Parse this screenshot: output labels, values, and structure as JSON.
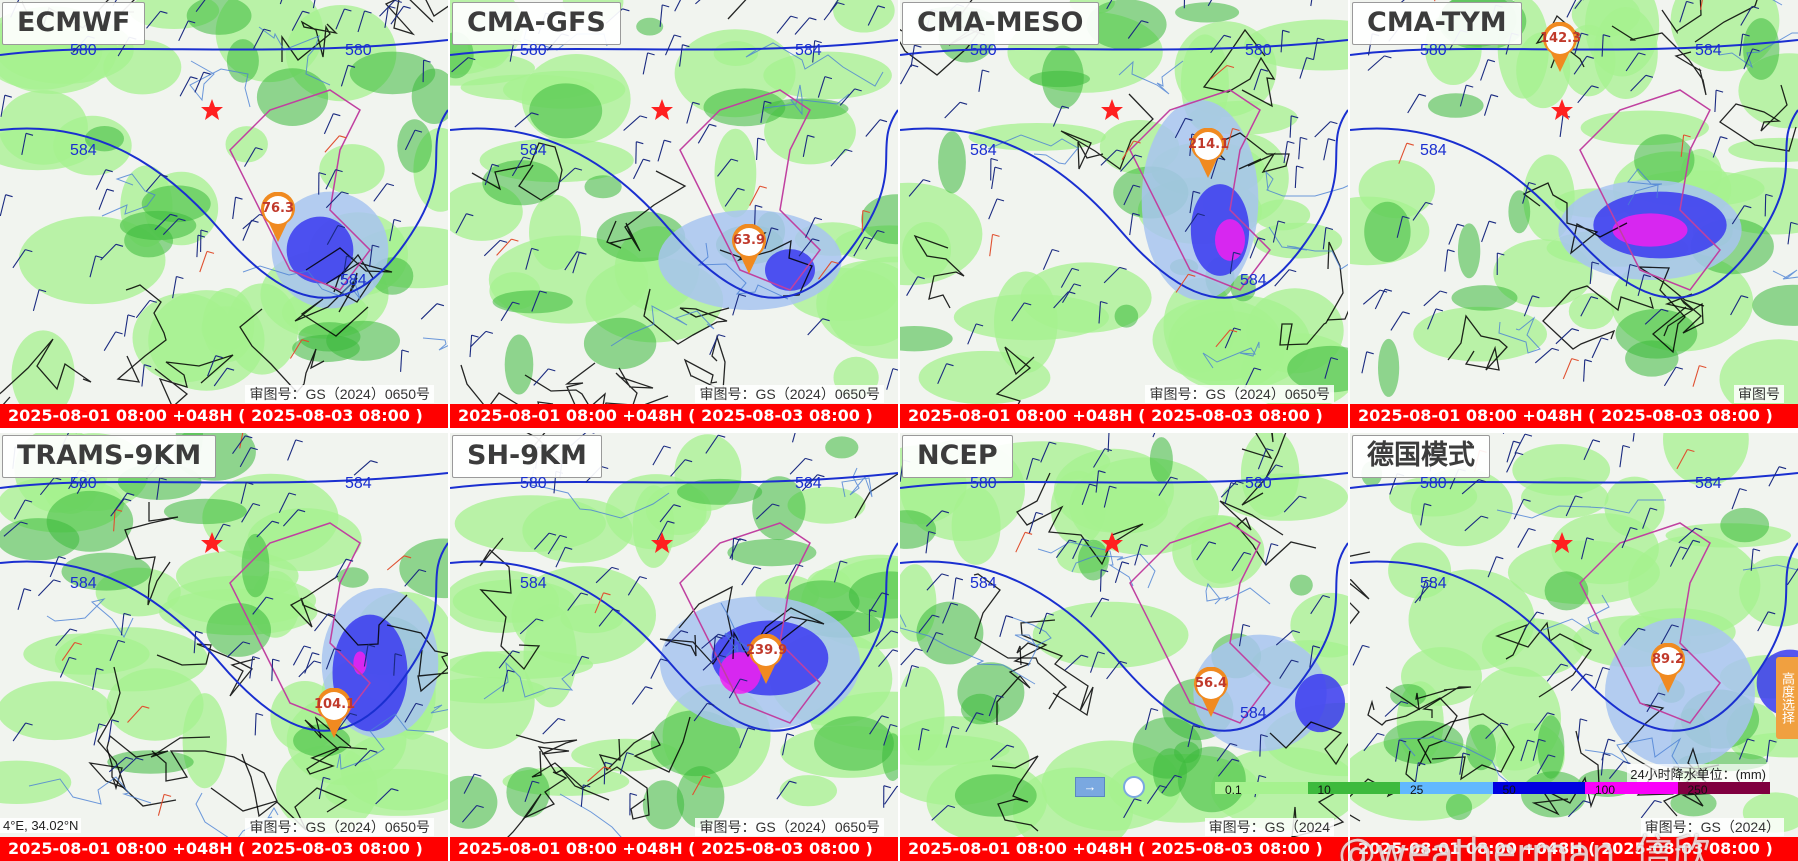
{
  "panels": [
    {
      "title": "ECMWF",
      "max_value": "76.3",
      "footer": "2025-08-01 08:00 +048H ( 2025-08-03 08:00 )",
      "approval": "审图号：GS（2024）0650号",
      "contours": [
        "580",
        "580",
        "584",
        "584"
      ]
    },
    {
      "title": "CMA-GFS",
      "max_value": "63.9",
      "footer": "2025-08-01 08:00 +048H ( 2025-08-03 08:00 )",
      "approval": "审图号：GS（2024）0650号",
      "contours": [
        "580",
        "584",
        "584"
      ]
    },
    {
      "title": "CMA-MESO",
      "max_value": "214.1",
      "footer": "2025-08-01 08:00 +048H ( 2025-08-03 08:00 )",
      "approval": "审图号：GS（2024）0650号",
      "contours": [
        "580",
        "580",
        "584",
        "584"
      ]
    },
    {
      "title": "CMA-TYM",
      "max_value": "142.3",
      "footer": "2025-08-01 08:00 +048H ( 2025-08-03 08:00 )",
      "approval": "审图号",
      "contours": [
        "580",
        "584",
        "584"
      ]
    },
    {
      "title": "TRAMS-9KM",
      "max_value": "104.1",
      "footer": "2025-08-01 08:00 +048H ( 2025-08-03 08:00 )",
      "approval": "审图号：GS（2024）0650号",
      "contours": [
        "580",
        "584",
        "584"
      ],
      "coord": "4°E, 34.02°N"
    },
    {
      "title": "SH-9KM",
      "max_value": "239.9",
      "footer": "2025-08-01 08:00 +048H ( 2025-08-03 08:00 )",
      "approval": "审图号：GS（2024）0650号",
      "contours": [
        "580",
        "584",
        "584"
      ]
    },
    {
      "title": "NCEP",
      "max_value": "56.4",
      "footer": "2025-08-01 08:00 +048H ( 2025-08-03 08:00 )",
      "approval": "审图号：GS（2024",
      "contours": [
        "580",
        "580",
        "584",
        "584"
      ]
    },
    {
      "title": "德国模式",
      "max_value": "89.2",
      "footer": "2025-08-01 08:00 +048H ( 2025-08-03 08:00 )",
      "approval": "审图号：GS（2024）",
      "contours": [
        "580",
        "584",
        "584"
      ]
    }
  ],
  "legend": {
    "title": "24小时降水单位：(mm)",
    "ticks": [
      "0.1",
      "10",
      "25",
      "50",
      "100",
      "250"
    ],
    "colors": [
      "#a6f28f",
      "#3dba3d",
      "#61b8ff",
      "#0000e1",
      "#fa00fa",
      "#800040"
    ]
  },
  "side_tab": "高度选择",
  "ctrl_button": "→",
  "watermark": "@weatherman_信欣",
  "colors": {
    "footer_bg": "#ff0000",
    "contour": "#1a2fd0",
    "boundary": "#000000",
    "river": "#4a7fd4",
    "province": "#c040a0",
    "rain_light": "#a6f28f",
    "rain_mid": "#3dba3d",
    "rain_blue_light": "#a8c4f0",
    "rain_blue": "#3a3af0",
    "rain_magenta": "#f020f0",
    "wind_barb": "#1a2a80",
    "wind_barb_strong": "#e05030",
    "star": "#ff2020"
  }
}
